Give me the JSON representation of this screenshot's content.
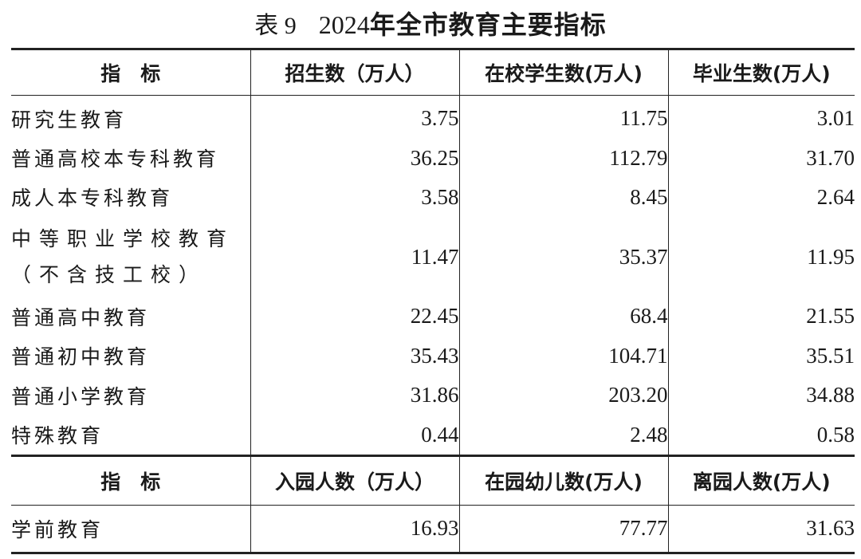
{
  "title": {
    "label": "表 9",
    "year": "2024",
    "text": "年全市教育主要指标"
  },
  "header1": [
    "指　标",
    "招生数（万人）",
    "在校学生数(万人)",
    "毕业生数(万人)"
  ],
  "rows": [
    {
      "name": "研究生教育",
      "v1": "3.75",
      "v2": "11.75",
      "v3": "3.01"
    },
    {
      "name": "普通高校本专科教育",
      "v1": "36.25",
      "v2": "112.79",
      "v3": "31.70"
    },
    {
      "name": "成人本专科教育",
      "v1": "3.58",
      "v2": "8.45",
      "v3": "2.64"
    },
    {
      "name_line1": "中等职业学校教育",
      "name_line2": "（不含技工校）",
      "v1": "11.47",
      "v2": "35.37",
      "v3": "11.95"
    },
    {
      "name": "普通高中教育",
      "v1": "22.45",
      "v2": "68.4",
      "v3": "21.55"
    },
    {
      "name": "普通初中教育",
      "v1": "35.43",
      "v2": "104.71",
      "v3": "35.51"
    },
    {
      "name": "普通小学教育",
      "v1": "31.86",
      "v2": "203.20",
      "v3": "34.88"
    },
    {
      "name": "特殊教育",
      "v1": "0.44",
      "v2": "2.48",
      "v3": "0.58"
    }
  ],
  "header2": [
    "指　标",
    "入园人数（万人）",
    "在园幼儿数(万人)",
    "离园人数(万人)"
  ],
  "preschool": {
    "name": "学前教育",
    "v1": "16.93",
    "v2": "77.77",
    "v3": "31.63"
  }
}
